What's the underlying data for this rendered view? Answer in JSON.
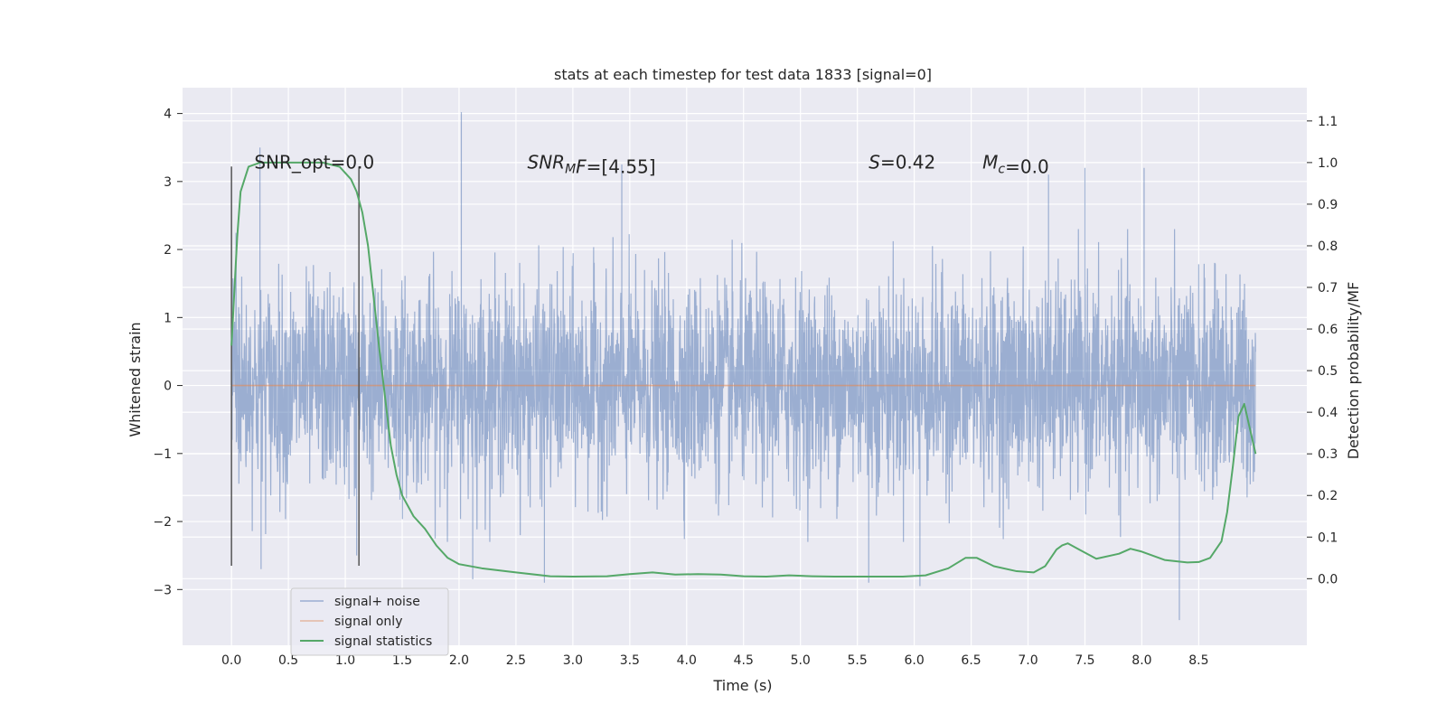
{
  "chart_data": {
    "type": "line",
    "title": "stats at each timestep for test data 1833 [signal=0]",
    "xlabel": "Time (s)",
    "ylabel": "Whitened strain",
    "y2label": "Detection probability/MF",
    "xlim": [
      -0.43,
      9.45
    ],
    "ylim": [
      -3.82,
      4.38
    ],
    "y2lim": [
      -0.16,
      1.18
    ],
    "x_ticks": [
      0.0,
      0.5,
      1.0,
      1.5,
      2.0,
      2.5,
      3.0,
      3.5,
      4.0,
      4.5,
      5.0,
      5.5,
      6.0,
      6.5,
      7.0,
      7.5,
      8.0,
      8.5
    ],
    "x_tick_labels": [
      "0.0",
      "0.5",
      "1.0",
      "1.5",
      "2.0",
      "2.5",
      "3.0",
      "3.5",
      "4.0",
      "4.5",
      "5.0",
      "5.5",
      "6.0",
      "6.5",
      "7.0",
      "7.5",
      "8.0",
      "8.5"
    ],
    "y_ticks": [
      -3,
      -2,
      -1,
      0,
      1,
      2,
      3,
      4
    ],
    "y_tick_labels": [
      "−3",
      "−2",
      "−1",
      "0",
      "1",
      "2",
      "3",
      "4"
    ],
    "y2_ticks": [
      0.0,
      0.1,
      0.2,
      0.3,
      0.4,
      0.5,
      0.6,
      0.7,
      0.8,
      0.9,
      1.0,
      1.1
    ],
    "y2_tick_labels": [
      "0.0",
      "0.1",
      "0.2",
      "0.3",
      "0.4",
      "0.5",
      "0.6",
      "0.7",
      "0.8",
      "0.9",
      "1.0",
      "1.1"
    ],
    "grid": true,
    "legend_position": "lower-left",
    "series": [
      {
        "name": "signal+ noise",
        "color": "#4c72b0",
        "kind": "dense noise",
        "x_range": [
          0.0,
          9.0
        ],
        "envelope_typical": [
          -1.5,
          1.5
        ],
        "spikes": [
          {
            "x": 0.25,
            "y": 3.5
          },
          {
            "x": 0.26,
            "y": -2.7
          },
          {
            "x": 1.1,
            "y": -2.5
          },
          {
            "x": 2.02,
            "y": 4.02
          },
          {
            "x": 2.12,
            "y": -2.85
          },
          {
            "x": 2.75,
            "y": -2.9
          },
          {
            "x": 3.43,
            "y": 3.25
          },
          {
            "x": 5.6,
            "y": -2.9
          },
          {
            "x": 6.05,
            "y": -2.95
          },
          {
            "x": 7.18,
            "y": 3.1
          },
          {
            "x": 7.5,
            "y": 3.2
          },
          {
            "x": 8.33,
            "y": -3.45
          },
          {
            "x": 8.02,
            "y": 3.2
          }
        ]
      },
      {
        "name": "signal only",
        "color": "#dd8452",
        "x": [
          0.0,
          9.0
        ],
        "y": [
          0.0,
          0.0
        ]
      },
      {
        "name": "signal statistics",
        "color": "#55a868",
        "axis": "right",
        "x": [
          0.0,
          0.05,
          0.08,
          0.15,
          0.25,
          0.4,
          0.6,
          0.8,
          0.95,
          1.05,
          1.1,
          1.15,
          1.2,
          1.3,
          1.4,
          1.45,
          1.5,
          1.6,
          1.7,
          1.8,
          1.9,
          2.0,
          2.2,
          2.5,
          2.8,
          3.0,
          3.3,
          3.5,
          3.7,
          3.9,
          4.1,
          4.3,
          4.5,
          4.7,
          4.9,
          5.1,
          5.3,
          5.6,
          5.9,
          6.1,
          6.3,
          6.45,
          6.55,
          6.7,
          6.9,
          7.05,
          7.15,
          7.25,
          7.3,
          7.35,
          7.45,
          7.6,
          7.8,
          7.9,
          8.0,
          8.2,
          8.4,
          8.5,
          8.6,
          8.7,
          8.75,
          8.8,
          8.85,
          8.9,
          8.95,
          9.0
        ],
        "y": [
          0.56,
          0.82,
          0.93,
          0.99,
          1.0,
          1.0,
          1.0,
          1.0,
          0.99,
          0.96,
          0.93,
          0.88,
          0.8,
          0.55,
          0.32,
          0.25,
          0.2,
          0.15,
          0.12,
          0.08,
          0.05,
          0.035,
          0.025,
          0.015,
          0.006,
          0.005,
          0.006,
          0.011,
          0.015,
          0.01,
          0.011,
          0.01,
          0.006,
          0.005,
          0.008,
          0.006,
          0.005,
          0.005,
          0.005,
          0.008,
          0.025,
          0.05,
          0.05,
          0.03,
          0.018,
          0.015,
          0.03,
          0.07,
          0.08,
          0.085,
          0.07,
          0.048,
          0.06,
          0.072,
          0.065,
          0.045,
          0.039,
          0.04,
          0.05,
          0.09,
          0.16,
          0.27,
          0.39,
          0.42,
          0.36,
          0.3
        ]
      }
    ],
    "vlines": [
      {
        "x": 0.0,
        "y_range": [
          -2.65,
          3.22
        ],
        "color": "#555555"
      },
      {
        "x": 1.12,
        "y_range": [
          -2.65,
          3.22
        ],
        "color": "#555555"
      }
    ],
    "annotations": [
      {
        "id": "snr_opt",
        "text": "SNR_opt=0.0",
        "x": 0.2,
        "y": 3.3
      },
      {
        "id": "snr_mf",
        "text_main": "SNR",
        "text_sub": "M",
        "text_after": "F=[4.55]",
        "x": 2.6,
        "y": 3.3
      },
      {
        "id": "s_val",
        "text_italic": "S",
        "text_after": "=0.42",
        "x": 5.6,
        "y": 3.3
      },
      {
        "id": "mc_val",
        "text_main": "M",
        "text_sub": "c",
        "text_after": "=0.0",
        "x": 6.6,
        "y": 3.3
      }
    ]
  }
}
